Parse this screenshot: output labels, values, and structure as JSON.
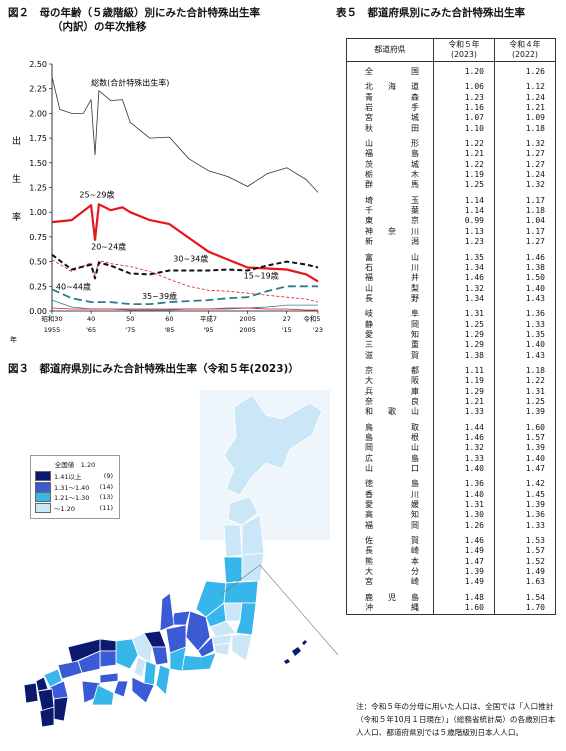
{
  "fig2": {
    "title_line1": "図２　母の年齢（５歳階級）別にみた合計特殊出生率",
    "title_line2": "（内訳）の年次推移",
    "ylabel": [
      "出",
      "生",
      "率"
    ],
    "x_ticks_top": [
      "昭和30",
      "40",
      "50",
      "60",
      "平成7",
      "2005",
      "27",
      "令和5"
    ],
    "x_ticks_bottom": [
      "1955",
      "'65",
      "'75",
      "'85",
      "'95",
      "2005",
      "'15",
      "'23"
    ],
    "xlabel": "年",
    "series_labels": {
      "total": "総数(合計特殊出生率)",
      "a25_29": "25~29歳",
      "a20_24": "20~24歳",
      "a30_34": "30~34歳",
      "a15_19": "15~19歳",
      "a40_44": "40~44歳",
      "a35_39": "35~39歳"
    }
  },
  "chart_data": {
    "type": "line",
    "ylim": [
      0,
      2.5
    ],
    "y_ticks": [
      "0.00",
      "0.25",
      "0.50",
      "0.75",
      "1.00",
      "1.25",
      "1.50",
      "1.75",
      "2.00",
      "2.25",
      "2.50"
    ],
    "xlim": [
      1955,
      2023
    ],
    "series": [
      {
        "name": "総数(合計特殊出生率)",
        "color": "#333333",
        "dash": "",
        "width": 0.8,
        "x": [
          1955,
          1957,
          1960,
          1963,
          1965,
          1966,
          1967,
          1970,
          1973,
          1975,
          1980,
          1985,
          1990,
          1995,
          2000,
          2005,
          2010,
          2015,
          2020,
          2023
        ],
        "y": [
          2.37,
          2.04,
          2.0,
          2.0,
          2.14,
          1.58,
          2.23,
          2.13,
          2.14,
          1.91,
          1.75,
          1.76,
          1.54,
          1.42,
          1.36,
          1.26,
          1.39,
          1.45,
          1.33,
          1.2
        ]
      },
      {
        "name": "25~29歳",
        "color": "#e8141c",
        "dash": "",
        "width": 2.2,
        "x": [
          1955,
          1960,
          1965,
          1966,
          1967,
          1970,
          1973,
          1975,
          1980,
          1985,
          1990,
          1995,
          2000,
          2005,
          2010,
          2015,
          2020,
          2023
        ],
        "y": [
          0.9,
          0.92,
          1.07,
          0.72,
          1.08,
          1.02,
          1.05,
          1.0,
          0.92,
          0.88,
          0.74,
          0.6,
          0.52,
          0.44,
          0.43,
          0.42,
          0.37,
          0.3
        ]
      },
      {
        "name": "20~24歳",
        "color": "#e8141c",
        "dash": "3,2",
        "width": 0.8,
        "x": [
          1955,
          1960,
          1965,
          1966,
          1967,
          1970,
          1975,
          1980,
          1985,
          1990,
          1995,
          2000,
          2005,
          2010,
          2015,
          2020,
          2023
        ],
        "y": [
          0.52,
          0.4,
          0.49,
          0.36,
          0.51,
          0.48,
          0.45,
          0.4,
          0.32,
          0.25,
          0.21,
          0.2,
          0.18,
          0.16,
          0.14,
          0.12,
          0.09
        ]
      },
      {
        "name": "30~34歳",
        "color": "#111111",
        "dash": "5,3",
        "width": 2.0,
        "x": [
          1955,
          1960,
          1965,
          1966,
          1967,
          1970,
          1975,
          1980,
          1985,
          1990,
          1995,
          2000,
          2005,
          2010,
          2015,
          2020,
          2023
        ],
        "y": [
          0.57,
          0.42,
          0.47,
          0.33,
          0.49,
          0.46,
          0.38,
          0.37,
          0.41,
          0.41,
          0.41,
          0.42,
          0.41,
          0.46,
          0.5,
          0.47,
          0.44
        ]
      },
      {
        "name": "35~39歳",
        "color": "#2b7c88",
        "dash": "8,4",
        "width": 1.8,
        "x": [
          1955,
          1960,
          1965,
          1970,
          1975,
          1980,
          1985,
          1990,
          1995,
          2000,
          2005,
          2010,
          2015,
          2020,
          2023
        ],
        "y": [
          0.22,
          0.13,
          0.09,
          0.09,
          0.07,
          0.07,
          0.09,
          0.1,
          0.11,
          0.13,
          0.14,
          0.2,
          0.25,
          0.25,
          0.25
        ]
      },
      {
        "name": "40~44歳",
        "color": "#2b7c88",
        "dash": "",
        "width": 0.8,
        "x": [
          1955,
          1960,
          1965,
          1970,
          1975,
          1980,
          1985,
          1990,
          1995,
          2000,
          2005,
          2010,
          2015,
          2020,
          2023
        ],
        "y": [
          0.11,
          0.04,
          0.02,
          0.02,
          0.01,
          0.01,
          0.01,
          0.02,
          0.02,
          0.02,
          0.03,
          0.04,
          0.06,
          0.06,
          0.06
        ]
      },
      {
        "name": "15~19歳",
        "color": "#e8141c",
        "dash": "",
        "width": 0.8,
        "x": [
          1955,
          1960,
          1965,
          1970,
          1975,
          1980,
          1985,
          1990,
          1995,
          2000,
          2005,
          2010,
          2015,
          2020,
          2023
        ],
        "y": [
          0.03,
          0.02,
          0.02,
          0.02,
          0.02,
          0.02,
          0.02,
          0.02,
          0.02,
          0.03,
          0.03,
          0.02,
          0.02,
          0.01,
          0.01
        ]
      }
    ]
  },
  "fig3": {
    "title": "図３　都道府県別にみた合計特殊出生率（令和５年(2023)）",
    "legend_title": "全国値　1.20",
    "legend": [
      {
        "label": "1.41以上",
        "count": "(9)",
        "color": "#0b1a6e"
      },
      {
        "label": "1.31～1.40",
        "count": "(14)",
        "color": "#3b5bd6"
      },
      {
        "label": "1.21～1.30",
        "count": "(13)",
        "color": "#36b6ea"
      },
      {
        "label": "～1.20",
        "count": "(11)",
        "color": "#cbe7f7"
      }
    ]
  },
  "table5": {
    "title": "表５　都道府県別にみた合計特殊出生率",
    "col_pref": "都道府県",
    "col_r5": "令和５年",
    "col_r5_sub": "(2023)",
    "col_r4": "令和４年",
    "col_r4_sub": "(2022)",
    "groups": [
      [
        [
          "全　　国",
          "1.20",
          "1.26"
        ]
      ],
      [
        [
          "北 海 道",
          "1.06",
          "1.12"
        ],
        [
          "青　森",
          "1.23",
          "1.24"
        ],
        [
          "岩　手",
          "1.16",
          "1.21"
        ],
        [
          "宮　城",
          "1.07",
          "1.09"
        ],
        [
          "秋　田",
          "1.10",
          "1.18"
        ]
      ],
      [
        [
          "山　形",
          "1.22",
          "1.32"
        ],
        [
          "福　島",
          "1.21",
          "1.27"
        ],
        [
          "茨　城",
          "1.22",
          "1.27"
        ],
        [
          "栃　木",
          "1.19",
          "1.24"
        ],
        [
          "群　馬",
          "1.25",
          "1.32"
        ]
      ],
      [
        [
          "埼　玉",
          "1.14",
          "1.17"
        ],
        [
          "千　葉",
          "1.14",
          "1.18"
        ],
        [
          "東　京",
          "0.99",
          "1.04"
        ],
        [
          "神 奈 川",
          "1.13",
          "1.17"
        ],
        [
          "新　潟",
          "1.23",
          "1.27"
        ]
      ],
      [
        [
          "富　山",
          "1.35",
          "1.46"
        ],
        [
          "石　川",
          "1.34",
          "1.38"
        ],
        [
          "福　井",
          "1.46",
          "1.50"
        ],
        [
          "山　梨",
          "1.32",
          "1.40"
        ],
        [
          "長　野",
          "1.34",
          "1.43"
        ]
      ],
      [
        [
          "岐　阜",
          "1.31",
          "1.36"
        ],
        [
          "静　岡",
          "1.25",
          "1.33"
        ],
        [
          "愛　知",
          "1.29",
          "1.35"
        ],
        [
          "三　重",
          "1.29",
          "1.40"
        ],
        [
          "滋　賀",
          "1.38",
          "1.43"
        ]
      ],
      [
        [
          "京　都",
          "1.11",
          "1.18"
        ],
        [
          "大　阪",
          "1.19",
          "1.22"
        ],
        [
          "兵　庫",
          "1.29",
          "1.31"
        ],
        [
          "奈　良",
          "1.21",
          "1.25"
        ],
        [
          "和 歌 山",
          "1.33",
          "1.39"
        ]
      ],
      [
        [
          "鳥　取",
          "1.44",
          "1.60"
        ],
        [
          "島　根",
          "1.46",
          "1.57"
        ],
        [
          "岡　山",
          "1.32",
          "1.39"
        ],
        [
          "広　島",
          "1.33",
          "1.40"
        ],
        [
          "山　口",
          "1.40",
          "1.47"
        ]
      ],
      [
        [
          "徳　島",
          "1.36",
          "1.42"
        ],
        [
          "香　川",
          "1.40",
          "1.45"
        ],
        [
          "愛　媛",
          "1.31",
          "1.39"
        ],
        [
          "高　知",
          "1.30",
          "1.36"
        ],
        [
          "福　岡",
          "1.26",
          "1.33"
        ]
      ],
      [
        [
          "佐　賀",
          "1.46",
          "1.53"
        ],
        [
          "長　崎",
          "1.49",
          "1.57"
        ],
        [
          "熊　本",
          "1.47",
          "1.52"
        ],
        [
          "大　分",
          "1.39",
          "1.49"
        ],
        [
          "宮　崎",
          "1.49",
          "1.63"
        ]
      ],
      [
        [
          "鹿 児 島",
          "1.48",
          "1.54"
        ],
        [
          "沖　縄",
          "1.60",
          "1.70"
        ]
      ]
    ],
    "note": "注：令和５年の分母に用いた人口は、全国では「人口推計（令和５年10月１日現在）」（総務省統計局）の各歳別日本人人口、都道府県別では５歳階級別日本人人口。"
  },
  "colors": {
    "red": "#e8141c",
    "teal": "#2b7c88",
    "navy": "#0b1a6e",
    "blue": "#3b5bd6",
    "cyan": "#36b6ea",
    "pale": "#cbe7f7",
    "sea": "#eef6fc"
  }
}
